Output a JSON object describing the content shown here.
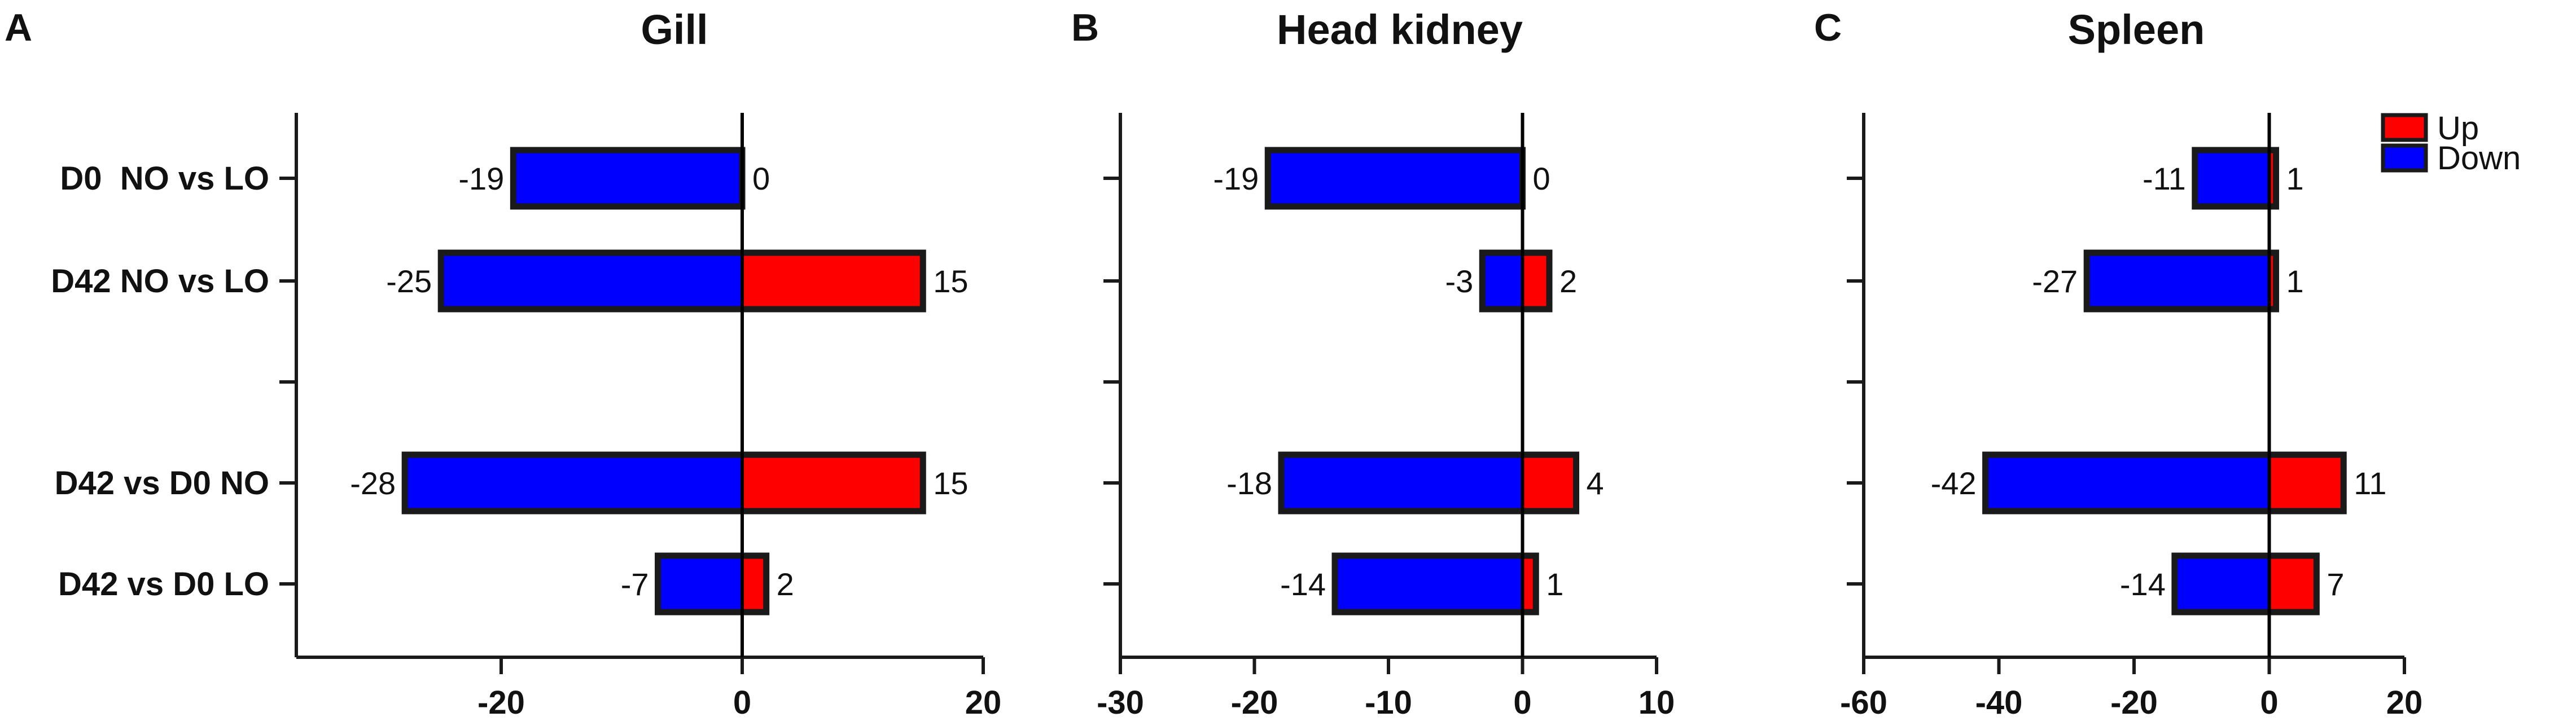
{
  "legend": {
    "items": [
      {
        "name": "Up",
        "color": "#ff0000"
      },
      {
        "name": "Down",
        "color": "#0000ff"
      }
    ]
  },
  "colors": {
    "up": "#ff0000",
    "down": "#0000ff"
  },
  "chart_data": [
    {
      "type": "bar",
      "orientation": "horizontal",
      "panel": "A",
      "title": "Gill",
      "categories": [
        "D0  NO vs LO",
        "D42 NO vs LO",
        "D42 vs D0 NO",
        "D42 vs D0 LO"
      ],
      "series": [
        {
          "name": "Down",
          "values": [
            -19,
            -25,
            -28,
            -7
          ]
        },
        {
          "name": "Up",
          "values": [
            0,
            15,
            15,
            2
          ]
        }
      ],
      "xlim": [
        -37,
        20
      ],
      "xticks": [
        -20,
        0,
        20
      ],
      "xtick_labels": [
        "-20",
        "0",
        "20"
      ]
    },
    {
      "type": "bar",
      "orientation": "horizontal",
      "panel": "B",
      "title": "Head kidney",
      "categories": [
        "D0  NO vs LO",
        "D42 NO vs LO",
        "D42 vs D0 NO",
        "D42 vs D0 LO"
      ],
      "series": [
        {
          "name": "Down",
          "values": [
            -19,
            -3,
            -18,
            -14
          ]
        },
        {
          "name": "Up",
          "values": [
            0,
            2,
            4,
            1
          ]
        }
      ],
      "xlim": [
        -30,
        10
      ],
      "xticks": [
        -30,
        -20,
        -10,
        0,
        10
      ],
      "xtick_labels": [
        "-30",
        "-20",
        "-10",
        "0",
        "10"
      ]
    },
    {
      "type": "bar",
      "orientation": "horizontal",
      "panel": "C",
      "title": "Spleen",
      "categories": [
        "D0  NO vs LO",
        "D42 NO vs LO",
        "D42 vs D0 NO",
        "D42 vs D0 LO"
      ],
      "series": [
        {
          "name": "Down",
          "values": [
            -11,
            -27,
            -42,
            -14
          ]
        },
        {
          "name": "Up",
          "values": [
            1,
            1,
            11,
            7
          ]
        }
      ],
      "xlim": [
        -60,
        20
      ],
      "xticks": [
        -60,
        -40,
        -20,
        0,
        20
      ],
      "xtick_labels": [
        "-60",
        "-40",
        "-20",
        "0",
        "20"
      ]
    }
  ]
}
